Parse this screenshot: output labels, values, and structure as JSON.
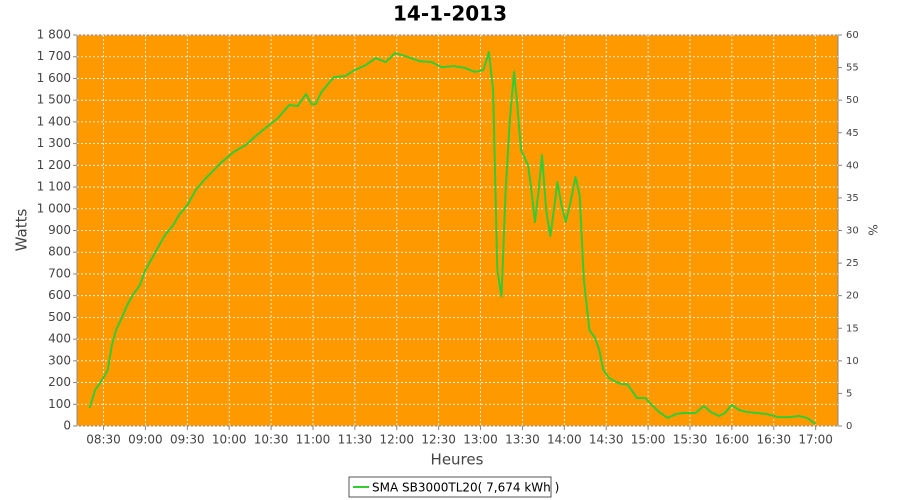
{
  "chart_data": {
    "type": "line",
    "title": "14-1-2013",
    "xlabel": "Heures",
    "ylabel": "Watts",
    "y2label": "%",
    "grid": true,
    "legend": "bottom",
    "background": "#ff9900",
    "xlim": [
      491,
      1036
    ],
    "xticks": [
      {
        "value": 510,
        "label": "08:30"
      },
      {
        "value": 540,
        "label": "09:00"
      },
      {
        "value": 570,
        "label": "09:30"
      },
      {
        "value": 600,
        "label": "10:00"
      },
      {
        "value": 630,
        "label": "10:30"
      },
      {
        "value": 660,
        "label": "11:00"
      },
      {
        "value": 690,
        "label": "11:30"
      },
      {
        "value": 720,
        "label": "12:00"
      },
      {
        "value": 750,
        "label": "12:30"
      },
      {
        "value": 780,
        "label": "13:00"
      },
      {
        "value": 810,
        "label": "13:30"
      },
      {
        "value": 840,
        "label": "14:00"
      },
      {
        "value": 870,
        "label": "14:30"
      },
      {
        "value": 900,
        "label": "15:00"
      },
      {
        "value": 930,
        "label": "15:30"
      },
      {
        "value": 960,
        "label": "16:00"
      },
      {
        "value": 990,
        "label": "16:30"
      },
      {
        "value": 1020,
        "label": "17:00"
      }
    ],
    "ylim": [
      0,
      1800
    ],
    "yticks": [
      0,
      100,
      200,
      300,
      400,
      500,
      600,
      700,
      800,
      900,
      {
        "value": 1000,
        "label": "1 000"
      },
      {
        "value": 1100,
        "label": "1 100"
      },
      {
        "value": 1200,
        "label": "1 200"
      },
      {
        "value": 1300,
        "label": "1 300"
      },
      {
        "value": 1400,
        "label": "1 400"
      },
      {
        "value": 1500,
        "label": "1 500"
      },
      {
        "value": 1600,
        "label": "1 600"
      },
      {
        "value": 1700,
        "label": "1 700"
      },
      {
        "value": 1800,
        "label": "1 800"
      }
    ],
    "y2lim": [
      0,
      60
    ],
    "y2ticks": [
      0,
      5,
      10,
      15,
      20,
      25,
      30,
      35,
      40,
      45,
      50,
      55,
      60
    ],
    "x": [
      500,
      504,
      509,
      513,
      516,
      519,
      523,
      527,
      531,
      536,
      540,
      546,
      550,
      554,
      560,
      564,
      570,
      576,
      582,
      589,
      594,
      603,
      612,
      619,
      626,
      635,
      643,
      649,
      655,
      659,
      662,
      666,
      675,
      683,
      690,
      698,
      705,
      712,
      719,
      728,
      736,
      745,
      752,
      761,
      769,
      776,
      782,
      786,
      789,
      792,
      795,
      798,
      801,
      804,
      806,
      809,
      814,
      816,
      819,
      822,
      824,
      827,
      830,
      833,
      835,
      838,
      841,
      844,
      848,
      851,
      854,
      858,
      862,
      865,
      868,
      872,
      877,
      881,
      885,
      888,
      892,
      898,
      902,
      908,
      914,
      920,
      925,
      934,
      940,
      945,
      951,
      955,
      960,
      965,
      971,
      978,
      985,
      993,
      1001,
      1008,
      1014,
      1020
    ],
    "series": [
      {
        "name": "SMA SB3000TL20( 7,674 kWh )",
        "color": "#33cc33",
        "values": [
          83,
          166,
          212,
          258,
          373,
          442,
          497,
          557,
          603,
          649,
          718,
          787,
          833,
          879,
          925,
          971,
          1017,
          1086,
          1132,
          1178,
          1211,
          1261,
          1294,
          1335,
          1372,
          1418,
          1478,
          1473,
          1528,
          1482,
          1482,
          1537,
          1606,
          1611,
          1639,
          1662,
          1694,
          1675,
          1717,
          1699,
          1680,
          1675,
          1652,
          1657,
          1648,
          1630,
          1639,
          1721,
          1547,
          718,
          598,
          1086,
          1409,
          1630,
          1501,
          1270,
          1201,
          1109,
          939,
          1109,
          1247,
          994,
          875,
          1017,
          1123,
          1017,
          939,
          1017,
          1146,
          1063,
          672,
          442,
          405,
          350,
          258,
          221,
          203,
          193,
          193,
          166,
          129,
          129,
          101,
          64,
          37,
          55,
          60,
          60,
          92,
          64,
          46,
          60,
          97,
          74,
          64,
          60,
          55,
          41,
          41,
          46,
          37,
          9
        ]
      }
    ]
  }
}
